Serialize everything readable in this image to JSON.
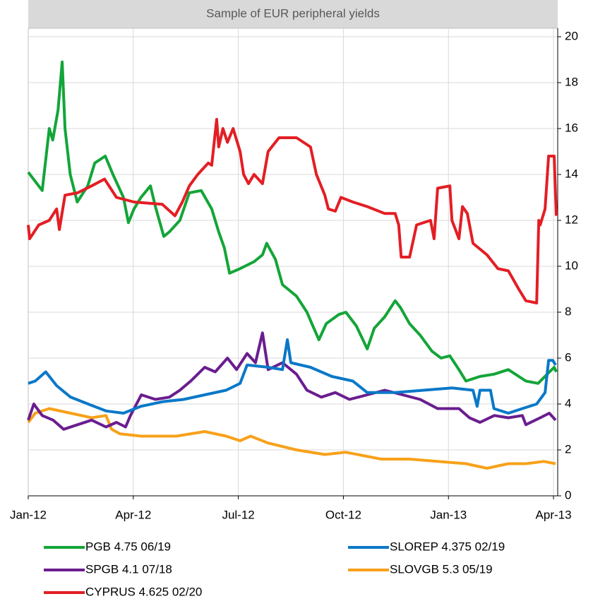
{
  "chart_data": {
    "type": "line",
    "title": "Sample of EUR peripheral yields",
    "xlim": [
      0,
      15.12
    ],
    "xticks": [
      {
        "value": 0,
        "label": "Jan-12"
      },
      {
        "value": 3,
        "label": "Apr-12"
      },
      {
        "value": 6,
        "label": "Jul-12"
      },
      {
        "value": 9,
        "label": "Oct-12"
      },
      {
        "value": 12,
        "label": "Jan-13"
      },
      {
        "value": 15,
        "label": "Apr-13"
      }
    ],
    "ylim": [
      0,
      20
    ],
    "yticks": [
      0,
      2,
      4,
      6,
      8,
      10,
      12,
      14,
      16,
      18,
      20
    ],
    "grid": true,
    "legend": "bottom",
    "series": [
      {
        "name": "PGB 4.75 06/19",
        "color": "#13a538",
        "x": [
          0,
          0.4,
          0.6,
          0.7,
          0.85,
          0.97,
          1.05,
          1.2,
          1.4,
          1.7,
          1.9,
          2.2,
          2.42,
          2.72,
          2.86,
          3.02,
          3.22,
          3.49,
          3.63,
          3.87,
          4.03,
          4.33,
          4.6,
          4.94,
          5.24,
          5.44,
          5.6,
          5.75,
          6.05,
          6.45,
          6.69,
          6.81,
          7.06,
          7.26,
          7.66,
          7.96,
          8.1,
          8.3,
          8.51,
          8.87,
          9.07,
          9.37,
          9.68,
          9.88,
          10.18,
          10.48,
          10.63,
          10.89,
          11.19,
          11.53,
          11.79,
          12.04,
          12.3,
          12.5,
          12.9,
          13.3,
          13.71,
          14.21,
          14.56,
          14.82,
          15.02,
          15.08
        ],
        "values": [
          14.1,
          13.3,
          16.0,
          15.5,
          16.8,
          18.9,
          16.0,
          14.0,
          12.8,
          13.5,
          14.5,
          14.8,
          14.0,
          13.0,
          11.9,
          12.5,
          13.0,
          13.5,
          12.6,
          11.3,
          11.5,
          12.0,
          13.2,
          13.3,
          12.5,
          11.5,
          10.8,
          9.7,
          9.9,
          10.2,
          10.5,
          11.0,
          10.3,
          9.2,
          8.7,
          8.0,
          7.5,
          6.8,
          7.5,
          7.9,
          8.0,
          7.4,
          6.4,
          7.3,
          7.8,
          8.5,
          8.2,
          7.5,
          7.0,
          6.3,
          6.0,
          6.1,
          5.5,
          5.0,
          5.2,
          5.3,
          5.5,
          5.0,
          4.9,
          5.3,
          5.6,
          5.4
        ]
      },
      {
        "name": "SLOREP 4.375 02/19",
        "color": "#0a78c8",
        "x": [
          0,
          0.2,
          0.5,
          0.81,
          1.21,
          1.71,
          2.22,
          2.72,
          3.22,
          3.83,
          4.44,
          5.04,
          5.65,
          6.05,
          6.25,
          6.85,
          7.26,
          7.4,
          7.5,
          8.06,
          8.67,
          9.27,
          9.68,
          10.48,
          11.29,
          12.1,
          12.7,
          12.82,
          12.9,
          13.2,
          13.3,
          13.71,
          14.11,
          14.52,
          14.76,
          14.86,
          14.98,
          15.06
        ],
        "values": [
          4.9,
          5.0,
          5.4,
          4.8,
          4.3,
          4.0,
          3.7,
          3.6,
          3.9,
          4.1,
          4.2,
          4.4,
          4.6,
          4.9,
          5.7,
          5.6,
          5.5,
          6.8,
          5.8,
          5.6,
          5.2,
          5.0,
          4.5,
          4.5,
          4.6,
          4.7,
          4.6,
          3.9,
          4.6,
          4.6,
          3.8,
          3.6,
          3.8,
          4.0,
          4.5,
          5.9,
          5.9,
          5.7
        ]
      },
      {
        "name": "SPGB 4.1 07/18",
        "color": "#6a1d8f",
        "x": [
          0,
          0.16,
          0.4,
          0.71,
          1.01,
          1.41,
          1.81,
          2.22,
          2.52,
          2.78,
          2.92,
          3.23,
          3.63,
          4.03,
          4.33,
          4.64,
          5.04,
          5.34,
          5.69,
          5.95,
          6.25,
          6.49,
          6.69,
          6.85,
          7.26,
          7.66,
          7.96,
          8.37,
          8.77,
          9.17,
          9.68,
          10.18,
          10.69,
          11.19,
          11.69,
          12.3,
          12.6,
          12.9,
          13.31,
          13.71,
          14.11,
          14.21,
          14.62,
          14.88,
          15.06
        ],
        "values": [
          3.3,
          4.0,
          3.5,
          3.3,
          2.9,
          3.1,
          3.3,
          3.0,
          3.2,
          3.0,
          3.5,
          4.4,
          4.2,
          4.3,
          4.6,
          5.0,
          5.6,
          5.4,
          6.0,
          5.5,
          6.2,
          5.8,
          7.1,
          5.5,
          5.8,
          5.3,
          4.6,
          4.3,
          4.5,
          4.2,
          4.4,
          4.6,
          4.4,
          4.2,
          3.8,
          3.8,
          3.4,
          3.2,
          3.5,
          3.4,
          3.5,
          3.1,
          3.4,
          3.6,
          3.3
        ]
      },
      {
        "name": "SLOVGB 5.3 05/19",
        "color": "#f7a11a",
        "x": [
          0,
          0.2,
          0.6,
          1.21,
          1.81,
          2.22,
          2.38,
          2.62,
          3.23,
          4.23,
          5.04,
          5.65,
          6.05,
          6.35,
          6.85,
          7.66,
          8.47,
          9.07,
          10.08,
          10.89,
          11.69,
          12.5,
          13.1,
          13.71,
          14.21,
          14.72,
          15.06
        ],
        "values": [
          3.2,
          3.6,
          3.8,
          3.6,
          3.4,
          3.5,
          2.9,
          2.7,
          2.6,
          2.6,
          2.8,
          2.6,
          2.4,
          2.6,
          2.3,
          2.0,
          1.8,
          1.9,
          1.6,
          1.6,
          1.5,
          1.4,
          1.2,
          1.4,
          1.4,
          1.5,
          1.4
        ]
      },
      {
        "name": "CYPRUS 4.625 02/20",
        "color": "#e31e24",
        "x": [
          0,
          0.04,
          0.3,
          0.6,
          0.81,
          0.89,
          1.05,
          1.41,
          1.81,
          2.18,
          2.52,
          3.02,
          3.83,
          4.19,
          4.4,
          4.6,
          4.84,
          5.14,
          5.24,
          5.38,
          5.44,
          5.56,
          5.69,
          5.85,
          6.05,
          6.15,
          6.29,
          6.45,
          6.69,
          6.85,
          7.16,
          7.66,
          7.86,
          8.06,
          8.23,
          8.47,
          8.57,
          8.77,
          8.93,
          9.27,
          9.68,
          10.18,
          10.48,
          10.58,
          10.65,
          10.89,
          11.09,
          11.49,
          11.59,
          11.69,
          12.04,
          12.1,
          12.3,
          12.4,
          12.54,
          12.7,
          13.1,
          13.41,
          13.71,
          14.01,
          14.21,
          14.52,
          14.58,
          14.62,
          14.76,
          14.86,
          15.02,
          15.08
        ],
        "values": [
          11.8,
          11.2,
          11.8,
          12.0,
          12.5,
          11.6,
          13.1,
          13.2,
          13.5,
          13.8,
          13.0,
          12.8,
          12.7,
          12.2,
          12.8,
          13.5,
          14.0,
          14.5,
          14.4,
          16.4,
          15.2,
          16.0,
          15.4,
          16.0,
          15.0,
          14.0,
          13.6,
          14.0,
          13.6,
          15.0,
          15.6,
          15.6,
          15.4,
          15.2,
          14.0,
          13.1,
          12.5,
          12.4,
          13.0,
          12.8,
          12.6,
          12.3,
          12.3,
          11.8,
          10.4,
          10.4,
          11.8,
          12.0,
          11.2,
          13.4,
          13.5,
          12.0,
          11.2,
          12.6,
          12.3,
          11.0,
          10.5,
          9.9,
          9.8,
          9.0,
          8.5,
          8.4,
          12.0,
          11.8,
          12.5,
          14.8,
          14.8,
          12.2
        ]
      }
    ]
  }
}
